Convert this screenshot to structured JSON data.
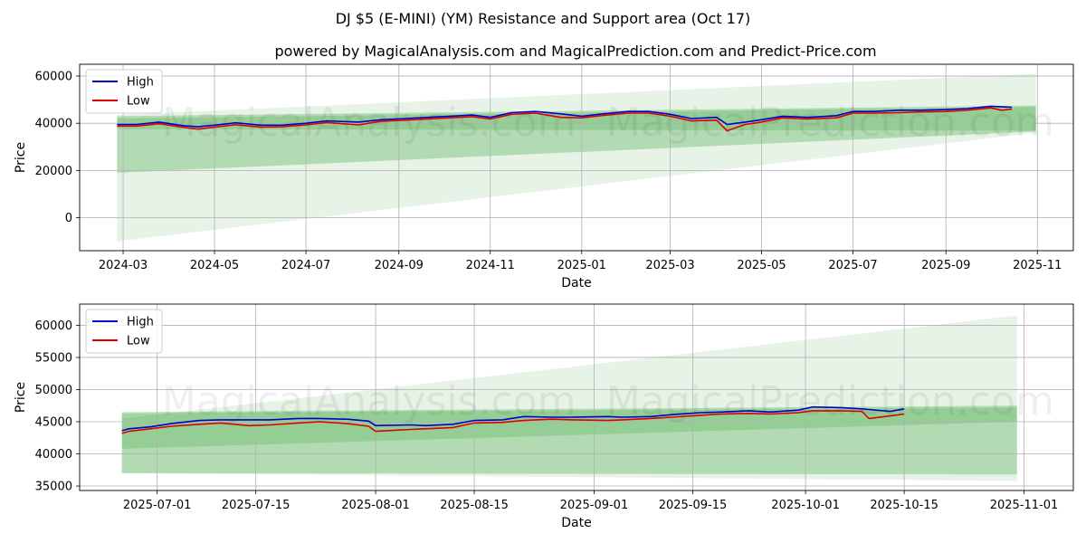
{
  "title": "DJ $5 (E-MINI) (YM) Resistance and Support area (Oct 17)",
  "subtitle": "powered by MagicalAnalysis.com and MagicalPrediction.com and Predict-Price.com",
  "watermarks": [
    "MagicalAnalysis.com",
    "MagicalPrediction.com"
  ],
  "colors": {
    "high": "#0000cc",
    "low": "#dd0000",
    "band": "#2e9e2e"
  },
  "chart_data": [
    {
      "type": "line",
      "id": "top",
      "xlabel": "Date",
      "ylabel": "Price",
      "xlim": [
        "2024-02-01",
        "2025-11-25"
      ],
      "ylim": [
        -14000,
        65000
      ],
      "xticks": [
        {
          "date": "2024-03-01",
          "label": "2024-03"
        },
        {
          "date": "2024-05-01",
          "label": "2024-05"
        },
        {
          "date": "2024-07-01",
          "label": "2024-07"
        },
        {
          "date": "2024-09-01",
          "label": "2024-09"
        },
        {
          "date": "2024-11-01",
          "label": "2024-11"
        },
        {
          "date": "2025-01-01",
          "label": "2025-01"
        },
        {
          "date": "2025-03-01",
          "label": "2025-03"
        },
        {
          "date": "2025-05-01",
          "label": "2025-05"
        },
        {
          "date": "2025-07-01",
          "label": "2025-07"
        },
        {
          "date": "2025-09-01",
          "label": "2025-09"
        },
        {
          "date": "2025-11-01",
          "label": "2025-11"
        }
      ],
      "yticks": [
        0,
        20000,
        40000,
        60000
      ],
      "ytick_labels": [
        "0",
        "20000",
        "40000",
        "60000"
      ],
      "legend": [
        "High",
        "Low"
      ],
      "legend_position": "top-left",
      "bands": [
        {
          "x": [
            "2024-02-26",
            "2025-10-31"
          ],
          "upper": [
            43500,
            61000
          ],
          "lower": [
            -10000,
            36000
          ],
          "opacity": 0.12
        },
        {
          "x": [
            "2024-02-26",
            "2025-10-31"
          ],
          "upper": [
            43000,
            47500
          ],
          "lower": [
            19000,
            36500
          ],
          "opacity": 0.28
        },
        {
          "x": [
            "2024-02-26",
            "2025-10-31"
          ],
          "upper": [
            42000,
            47000
          ],
          "lower": [
            37500,
            36800
          ],
          "opacity": 0.22
        }
      ],
      "series": [
        {
          "name": "High",
          "dates": [
            "2024-02-26",
            "2024-03-10",
            "2024-03-25",
            "2024-04-10",
            "2024-04-20",
            "2024-05-01",
            "2024-05-15",
            "2024-06-01",
            "2024-06-15",
            "2024-07-01",
            "2024-07-15",
            "2024-08-05",
            "2024-08-20",
            "2024-09-05",
            "2024-09-20",
            "2024-10-05",
            "2024-10-20",
            "2024-11-01",
            "2024-11-15",
            "2024-12-01",
            "2024-12-18",
            "2025-01-01",
            "2025-01-15",
            "2025-02-01",
            "2025-02-15",
            "2025-03-01",
            "2025-03-15",
            "2025-04-01",
            "2025-04-08",
            "2025-04-20",
            "2025-05-01",
            "2025-05-15",
            "2025-06-01",
            "2025-06-20",
            "2025-07-01",
            "2025-07-15",
            "2025-08-01",
            "2025-08-15",
            "2025-09-01",
            "2025-09-15",
            "2025-10-01",
            "2025-10-08",
            "2025-10-15"
          ],
          "values": [
            39500,
            39500,
            40500,
            39000,
            38500,
            39200,
            40200,
            39200,
            39200,
            40000,
            41000,
            40500,
            41500,
            42000,
            42500,
            43000,
            43500,
            42500,
            44500,
            45000,
            44000,
            43000,
            44000,
            45000,
            45000,
            43800,
            42000,
            42500,
            39500,
            40500,
            41500,
            43000,
            42500,
            43200,
            45000,
            45000,
            45500,
            45500,
            45800,
            46200,
            47200,
            47000,
            46800
          ]
        },
        {
          "name": "Low",
          "dates": [
            "2024-02-26",
            "2024-03-10",
            "2024-03-25",
            "2024-04-10",
            "2024-04-20",
            "2024-05-01",
            "2024-05-15",
            "2024-06-01",
            "2024-06-15",
            "2024-07-01",
            "2024-07-15",
            "2024-08-05",
            "2024-08-20",
            "2024-09-05",
            "2024-09-20",
            "2024-10-05",
            "2024-10-20",
            "2024-11-01",
            "2024-11-15",
            "2024-12-01",
            "2024-12-18",
            "2025-01-01",
            "2025-01-15",
            "2025-02-01",
            "2025-02-15",
            "2025-03-01",
            "2025-03-15",
            "2025-04-01",
            "2025-04-08",
            "2025-04-20",
            "2025-05-01",
            "2025-05-15",
            "2025-06-01",
            "2025-06-20",
            "2025-07-01",
            "2025-07-15",
            "2025-08-01",
            "2025-08-15",
            "2025-09-01",
            "2025-09-15",
            "2025-10-01",
            "2025-10-08",
            "2025-10-15"
          ],
          "values": [
            38800,
            38800,
            39800,
            38300,
            37500,
            38400,
            39400,
            38400,
            38500,
            39300,
            40300,
            39300,
            40800,
            41300,
            41800,
            42300,
            42800,
            41800,
            43800,
            44300,
            42500,
            42300,
            43300,
            44300,
            44300,
            43000,
            41000,
            41300,
            36800,
            39500,
            40500,
            42300,
            41800,
            42300,
            44300,
            44300,
            44500,
            44800,
            45000,
            45500,
            46500,
            45500,
            46000
          ]
        }
      ]
    },
    {
      "type": "line",
      "id": "bottom",
      "xlabel": "Date",
      "ylabel": "Price",
      "xlim": [
        "2025-06-20",
        "2025-11-08"
      ],
      "ylim": [
        34300,
        63300
      ],
      "xticks": [
        {
          "date": "2025-07-01",
          "label": "2025-07-01"
        },
        {
          "date": "2025-07-15",
          "label": "2025-07-15"
        },
        {
          "date": "2025-08-01",
          "label": "2025-08-01"
        },
        {
          "date": "2025-08-15",
          "label": "2025-08-15"
        },
        {
          "date": "2025-09-01",
          "label": "2025-09-01"
        },
        {
          "date": "2025-09-15",
          "label": "2025-09-15"
        },
        {
          "date": "2025-10-01",
          "label": "2025-10-01"
        },
        {
          "date": "2025-10-15",
          "label": "2025-10-15"
        },
        {
          "date": "2025-11-01",
          "label": "2025-11-01"
        }
      ],
      "yticks": [
        35000,
        40000,
        45000,
        50000,
        55000,
        60000
      ],
      "ytick_labels": [
        "35000",
        "40000",
        "45000",
        "50000",
        "55000",
        "60000"
      ],
      "legend": [
        "High",
        "Low"
      ],
      "legend_position": "top-left",
      "bands": [
        {
          "x": [
            "2025-06-26",
            "2025-10-31"
          ],
          "upper": [
            45500,
            61500
          ],
          "lower": [
            37000,
            35800
          ],
          "opacity": 0.12
        },
        {
          "x": [
            "2025-06-26",
            "2025-10-31"
          ],
          "upper": [
            46500,
            47500
          ],
          "lower": [
            37000,
            36800
          ],
          "opacity": 0.28
        },
        {
          "x": [
            "2025-06-26",
            "2025-10-31"
          ],
          "upper": [
            46300,
            47200
          ],
          "lower": [
            40800,
            45000
          ],
          "opacity": 0.22
        }
      ],
      "series": [
        {
          "name": "High",
          "dates": [
            "2025-06-26",
            "2025-06-27",
            "2025-06-30",
            "2025-07-03",
            "2025-07-07",
            "2025-07-10",
            "2025-07-14",
            "2025-07-17",
            "2025-07-21",
            "2025-07-24",
            "2025-07-28",
            "2025-07-31",
            "2025-08-01",
            "2025-08-06",
            "2025-08-08",
            "2025-08-12",
            "2025-08-15",
            "2025-08-19",
            "2025-08-22",
            "2025-08-26",
            "2025-08-29",
            "2025-09-03",
            "2025-09-05",
            "2025-09-09",
            "2025-09-12",
            "2025-09-16",
            "2025-09-19",
            "2025-09-23",
            "2025-09-26",
            "2025-09-30",
            "2025-10-02",
            "2025-10-06",
            "2025-10-09",
            "2025-10-10",
            "2025-10-13",
            "2025-10-15"
          ],
          "values": [
            43600,
            43900,
            44200,
            44700,
            45200,
            45300,
            45300,
            45300,
            45500,
            45500,
            45400,
            45100,
            44400,
            44500,
            44400,
            44600,
            45200,
            45300,
            45800,
            45700,
            45700,
            45800,
            45700,
            45800,
            46100,
            46400,
            46500,
            46700,
            46500,
            46800,
            47300,
            47200,
            47000,
            46900,
            46600,
            47000
          ]
        },
        {
          "name": "Low",
          "dates": [
            "2025-06-26",
            "2025-06-27",
            "2025-06-30",
            "2025-07-03",
            "2025-07-07",
            "2025-07-10",
            "2025-07-14",
            "2025-07-17",
            "2025-07-21",
            "2025-07-24",
            "2025-07-28",
            "2025-07-31",
            "2025-08-01",
            "2025-08-06",
            "2025-08-08",
            "2025-08-12",
            "2025-08-15",
            "2025-08-19",
            "2025-08-22",
            "2025-08-26",
            "2025-08-29",
            "2025-09-03",
            "2025-09-05",
            "2025-09-09",
            "2025-09-12",
            "2025-09-16",
            "2025-09-19",
            "2025-09-23",
            "2025-09-26",
            "2025-09-30",
            "2025-10-02",
            "2025-10-06",
            "2025-10-09",
            "2025-10-10",
            "2025-10-13",
            "2025-10-15"
          ],
          "values": [
            43200,
            43500,
            43900,
            44300,
            44600,
            44800,
            44400,
            44500,
            44800,
            45000,
            44700,
            44300,
            43500,
            43800,
            43900,
            44100,
            44800,
            44900,
            45200,
            45400,
            45300,
            45200,
            45300,
            45500,
            45700,
            46000,
            46200,
            46300,
            46200,
            46400,
            46700,
            46700,
            46600,
            45500,
            45900,
            46200
          ]
        }
      ]
    }
  ]
}
